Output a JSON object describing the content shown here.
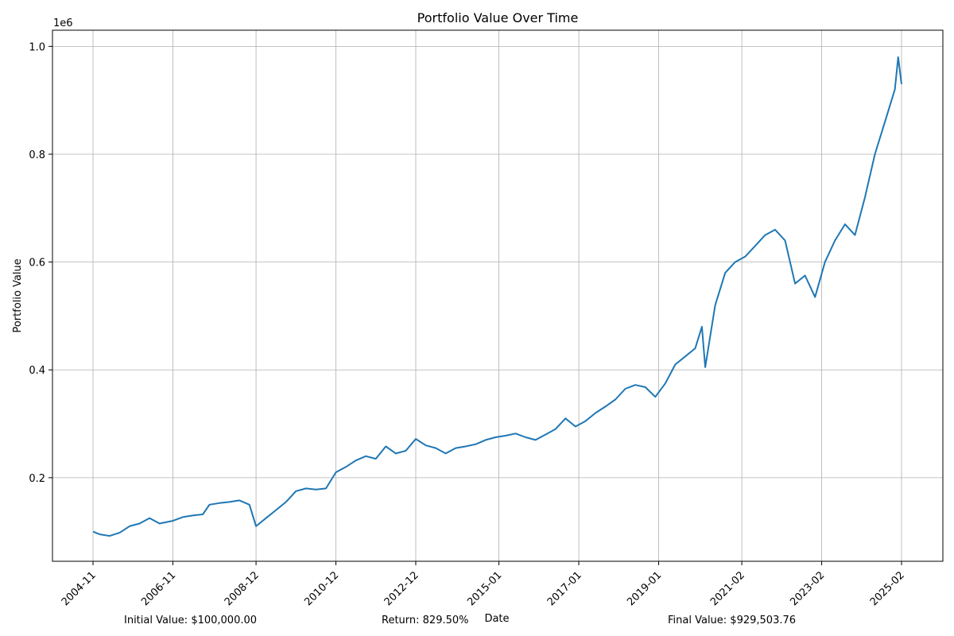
{
  "chart_data": {
    "type": "line",
    "title": "Portfolio Value Over Time",
    "xlabel": "Date",
    "ylabel": "Portfolio Value",
    "y_multiplier_label": "1e6",
    "grid": true,
    "legend": "none",
    "line_color": "#1f77b4",
    "x_ticks": [
      "2004-11",
      "2006-11",
      "2008-12",
      "2010-12",
      "2012-12",
      "2015-01",
      "2017-01",
      "2019-01",
      "2021-02",
      "2023-02",
      "2025-02"
    ],
    "y_ticks": [
      "0.2",
      "0.4",
      "0.6",
      "0.8",
      "1.0"
    ],
    "y_tick_values": [
      0.2,
      0.4,
      0.6,
      0.8,
      1.0
    ],
    "ylim": [
      0.045,
      1.03
    ],
    "series": [
      {
        "x": [
          "2004-11",
          "2005-01",
          "2005-04",
          "2005-07",
          "2005-10",
          "2006-01",
          "2006-04",
          "2006-07",
          "2006-11",
          "2007-02",
          "2007-05",
          "2007-08",
          "2007-10",
          "2008-01",
          "2008-04",
          "2008-07",
          "2008-10",
          "2008-12",
          "2009-03",
          "2009-06",
          "2009-09",
          "2009-12",
          "2010-03",
          "2010-06",
          "2010-09",
          "2010-12",
          "2011-03",
          "2011-06",
          "2011-09",
          "2011-12",
          "2012-03",
          "2012-06",
          "2012-09",
          "2012-12",
          "2013-03",
          "2013-06",
          "2013-09",
          "2013-12",
          "2014-03",
          "2014-06",
          "2014-09",
          "2014-12",
          "2015-03",
          "2015-06",
          "2015-09",
          "2015-12",
          "2016-03",
          "2016-06",
          "2016-09",
          "2016-12",
          "2017-03",
          "2017-06",
          "2017-09",
          "2017-12",
          "2018-03",
          "2018-06",
          "2018-09",
          "2018-12",
          "2019-03",
          "2019-06",
          "2019-09",
          "2019-12",
          "2020-02",
          "2020-03",
          "2020-06",
          "2020-09",
          "2020-12",
          "2021-03",
          "2021-06",
          "2021-09",
          "2021-12",
          "2022-03",
          "2022-06",
          "2022-09",
          "2022-12",
          "2023-03",
          "2023-06",
          "2023-09",
          "2023-12",
          "2024-03",
          "2024-06",
          "2024-09",
          "2024-12",
          "2025-01",
          "2025-02"
        ],
        "y": [
          0.1,
          0.095,
          0.092,
          0.098,
          0.11,
          0.115,
          0.125,
          0.115,
          0.12,
          0.127,
          0.13,
          0.132,
          0.15,
          0.153,
          0.155,
          0.158,
          0.15,
          0.11,
          0.125,
          0.14,
          0.155,
          0.175,
          0.18,
          0.178,
          0.18,
          0.21,
          0.22,
          0.232,
          0.24,
          0.235,
          0.258,
          0.245,
          0.25,
          0.272,
          0.26,
          0.255,
          0.245,
          0.255,
          0.258,
          0.262,
          0.27,
          0.275,
          0.278,
          0.282,
          0.275,
          0.27,
          0.28,
          0.29,
          0.31,
          0.295,
          0.305,
          0.32,
          0.332,
          0.345,
          0.365,
          0.372,
          0.368,
          0.35,
          0.375,
          0.41,
          0.425,
          0.44,
          0.48,
          0.405,
          0.52,
          0.58,
          0.6,
          0.61,
          0.63,
          0.65,
          0.66,
          0.64,
          0.56,
          0.575,
          0.535,
          0.6,
          0.64,
          0.67,
          0.65,
          0.72,
          0.8,
          0.86,
          0.92,
          0.98,
          0.93
        ]
      }
    ]
  },
  "footer": {
    "initial_value": "Initial Value: $100,000.00",
    "return": "Return: 829.50%",
    "final_value": "Final Value: $929,503.76"
  }
}
